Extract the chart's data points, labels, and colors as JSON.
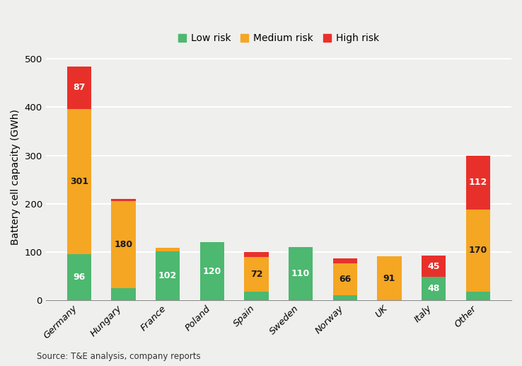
{
  "categories": [
    "Germany",
    "Hungary",
    "France",
    "Poland",
    "Spain",
    "Sweden",
    "Norway",
    "UK",
    "Italy",
    "Other"
  ],
  "low_risk": [
    96,
    25,
    102,
    120,
    18,
    110,
    10,
    0,
    48,
    18
  ],
  "medium_risk": [
    301,
    180,
    6,
    0,
    72,
    0,
    66,
    91,
    0,
    170
  ],
  "high_risk": [
    87,
    5,
    0,
    0,
    10,
    0,
    10,
    0,
    45,
    112
  ],
  "labels": {
    "low": [
      96,
      null,
      102,
      120,
      null,
      110,
      null,
      null,
      48,
      null
    ],
    "medium": [
      301,
      180,
      null,
      null,
      72,
      null,
      66,
      91,
      null,
      170
    ],
    "high": [
      87,
      null,
      null,
      null,
      null,
      null,
      null,
      null,
      45,
      112
    ]
  },
  "label_colors": {
    "low_white": [
      true,
      false,
      true,
      true,
      false,
      true,
      false,
      false,
      true,
      false
    ],
    "medium_white": [
      false,
      false,
      false,
      false,
      false,
      false,
      false,
      false,
      false,
      false
    ],
    "high_white": [
      true,
      false,
      false,
      false,
      false,
      false,
      false,
      false,
      true,
      true
    ]
  },
  "colors": {
    "low": "#4db870",
    "medium": "#f5a623",
    "high": "#e8302b"
  },
  "ylabel": "Battery cell capacity (GWh)",
  "yticks": [
    0,
    100,
    200,
    300,
    400,
    500
  ],
  "ylim": [
    0,
    510
  ],
  "legend_labels": [
    "Low risk",
    "Medium risk",
    "High risk"
  ],
  "source_text": "Source: T&E analysis, company reports",
  "background_color": "#efefed",
  "grid_color": "#ffffff",
  "label_fontsize": 9,
  "legend_fontsize": 10,
  "ylabel_fontsize": 10
}
